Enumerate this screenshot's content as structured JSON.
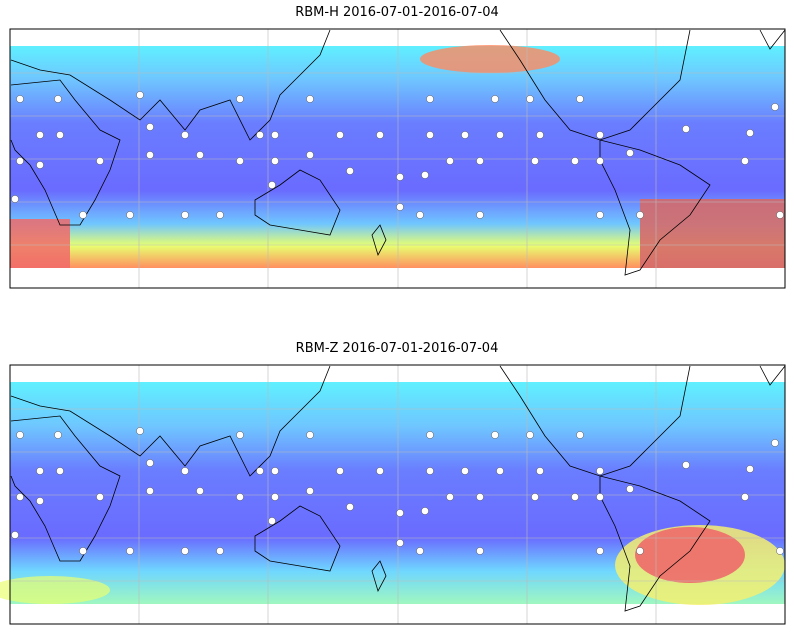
{
  "panels": [
    {
      "title": "RBM-H 2016-07-01-2016-07-04"
    },
    {
      "title": "RBM-Z 2016-07-01-2016-07-04"
    }
  ]
}
